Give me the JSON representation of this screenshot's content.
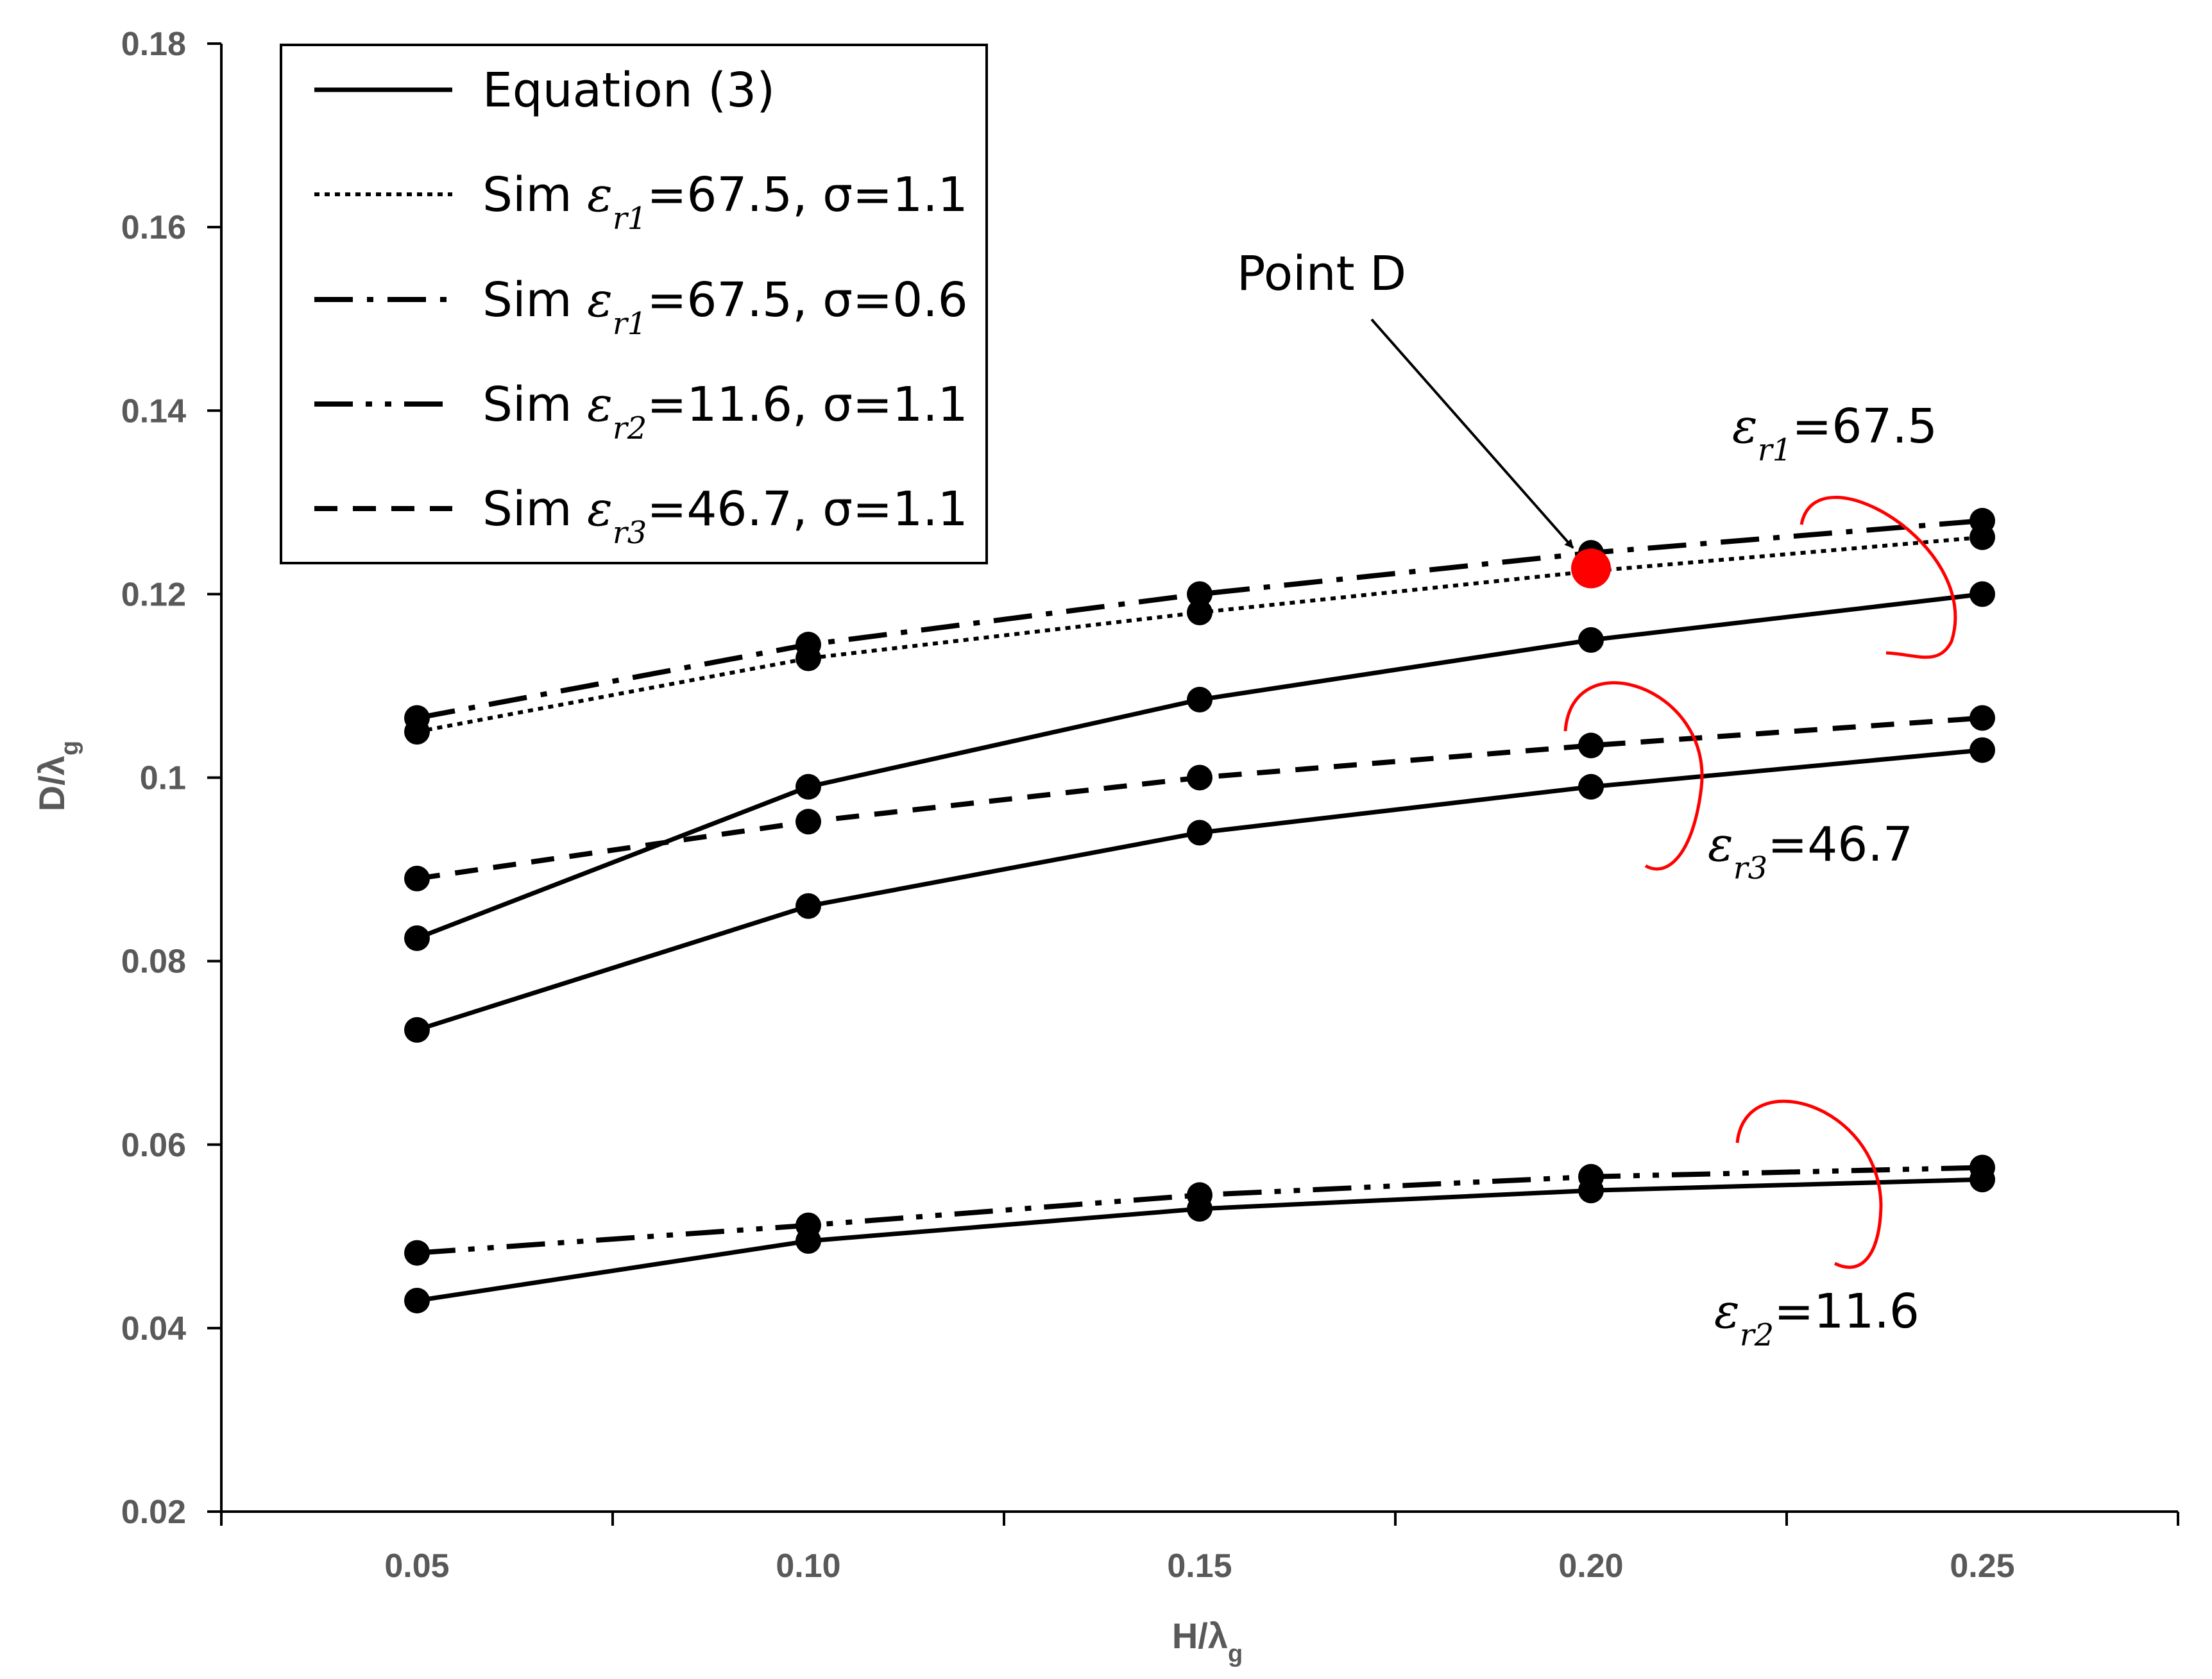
{
  "chart_data": {
    "type": "line",
    "xlabel": "H/λ",
    "xlabel_sub": "g",
    "ylabel": "D/λ",
    "ylabel_sub": "g",
    "x": [
      0.05,
      0.1,
      0.15,
      0.2,
      0.25
    ],
    "x_tick_labels": [
      "0.05",
      "0.10",
      "0.15",
      "0.20",
      "0.25"
    ],
    "xlim": [
      0.025,
      0.275
    ],
    "ylim": [
      0.02,
      0.18
    ],
    "y_ticks": [
      0.02,
      0.04,
      0.06,
      0.08,
      0.1,
      0.12,
      0.14,
      0.16,
      0.18
    ],
    "y_tick_labels": [
      "0.02",
      "0.04",
      "0.06",
      "0.08",
      "0.1",
      "0.12",
      "0.14",
      "0.16",
      "0.18"
    ],
    "grid": false,
    "legend_position": "top-left",
    "series": [
      {
        "name": "Equation (3) εr1=67.5",
        "style": "solid",
        "in_legend": false,
        "values": [
          0.0825,
          0.099,
          0.1085,
          0.115,
          0.12
        ]
      },
      {
        "name": "Equation (3) εr3=46.7",
        "style": "solid",
        "in_legend": false,
        "values": [
          0.0725,
          0.086,
          0.094,
          0.099,
          0.103
        ]
      },
      {
        "name": "Equation (3) εr2=11.6",
        "style": "solid",
        "in_legend": false,
        "values": [
          0.043,
          0.0495,
          0.053,
          0.055,
          0.0562
        ]
      },
      {
        "name": "Sim εr1=67.5, σ=1.1",
        "style": "dotted",
        "in_legend": false,
        "values": [
          0.105,
          0.113,
          0.118,
          0.1225,
          0.1262
        ]
      },
      {
        "name": "Sim εr1=67.5, σ=0.6",
        "style": "dashdot",
        "in_legend": false,
        "values": [
          0.1065,
          0.1145,
          0.12,
          0.1245,
          0.128
        ]
      },
      {
        "name": "Sim εr2=11.6, σ=1.1",
        "style": "dashdotdot",
        "in_legend": false,
        "values": [
          0.0482,
          0.0512,
          0.0545,
          0.0565,
          0.0575
        ]
      },
      {
        "name": "Sim εr3=46.7, σ=1.1",
        "style": "dashed",
        "in_legend": false,
        "values": [
          0.089,
          0.0952,
          0.1,
          0.1035,
          0.1065
        ]
      }
    ],
    "legend": [
      {
        "style": "solid",
        "prefix": "Equation (3)",
        "sym": "",
        "sub": "",
        "suffix": ""
      },
      {
        "style": "dotted",
        "prefix": "Sim ",
        "sym": "ε",
        "sub": "r1",
        "suffix": "=67.5, σ=1.1"
      },
      {
        "style": "dashdot",
        "prefix": "Sim ",
        "sym": "ε",
        "sub": "r1",
        "suffix": "=67.5, σ=0.6"
      },
      {
        "style": "dashdotdot",
        "prefix": "Sim ",
        "sym": "ε",
        "sub": "r2",
        "suffix": "=11.6, σ=1.1"
      },
      {
        "style": "dashed",
        "prefix": "Sim ",
        "sym": "ε",
        "sub": "r3",
        "suffix": "=46.7, σ=1.1"
      }
    ],
    "highlight": {
      "label": "Point D",
      "x": 0.2,
      "y": 0.1228,
      "color": "#ff0000"
    },
    "group_labels": [
      {
        "sym": "ε",
        "sub": "r1",
        "value": "=67.5"
      },
      {
        "sym": "ε",
        "sub": "r3",
        "value": "=46.7"
      },
      {
        "sym": "ε",
        "sub": "r2",
        "value": "=11.6"
      }
    ],
    "bracket_color": "#ff0000"
  }
}
